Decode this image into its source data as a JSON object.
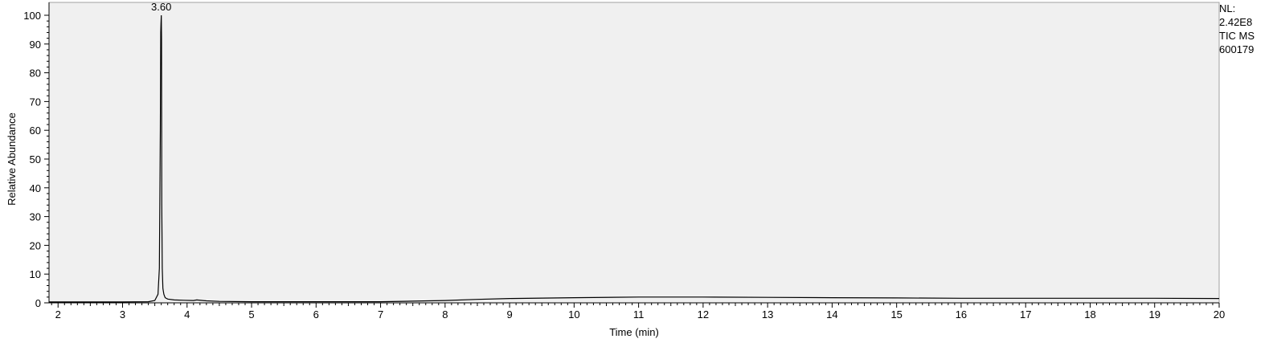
{
  "side_info": {
    "nl_label": "NL:",
    "nl_value": "2.42E8",
    "scan_filter": "TIC  MS",
    "sample_id": "600179"
  },
  "chart_data": {
    "type": "line",
    "xlabel": "Time (min)",
    "ylabel": "Relative Abundance",
    "xlim": [
      1.86,
      20
    ],
    "ylim": [
      0,
      100
    ],
    "x_ticks": [
      2,
      3,
      4,
      5,
      6,
      7,
      8,
      9,
      10,
      11,
      12,
      13,
      14,
      15,
      16,
      17,
      18,
      19,
      20
    ],
    "y_ticks": [
      0,
      10,
      20,
      30,
      40,
      50,
      60,
      70,
      80,
      90,
      100
    ],
    "background_color": "#f0f0f0",
    "line_color": "#000000",
    "annotations": [
      {
        "x": 3.6,
        "y": 100,
        "text": "3.60"
      }
    ],
    "series": [
      {
        "x": [
          1.86,
          2.5,
          3.0,
          3.4,
          3.5,
          3.55,
          3.57,
          3.585,
          3.592,
          3.596,
          3.6,
          3.604,
          3.608,
          3.615,
          3.625,
          3.64,
          3.66,
          3.7,
          3.8,
          3.95,
          4.1,
          4.15,
          4.3,
          4.5,
          5.0,
          6.0,
          7.0,
          7.5,
          8.0,
          8.5,
          9.0,
          10.0,
          11.0,
          12.0,
          13.0,
          14.0,
          15.0,
          16.0,
          17.0,
          18.0,
          19.0,
          20.0
        ],
        "y": [
          0.3,
          0.3,
          0.3,
          0.4,
          0.8,
          3.0,
          12.0,
          60.0,
          94.0,
          97.0,
          100.0,
          92.0,
          34.0,
          12.0,
          5.0,
          3.0,
          1.8,
          1.3,
          1.0,
          0.9,
          0.8,
          1.0,
          0.7,
          0.5,
          0.4,
          0.4,
          0.4,
          0.6,
          0.8,
          1.2,
          1.5,
          1.8,
          2.0,
          2.0,
          1.9,
          1.8,
          1.7,
          1.6,
          1.6,
          1.6,
          1.6,
          1.5
        ]
      }
    ]
  }
}
